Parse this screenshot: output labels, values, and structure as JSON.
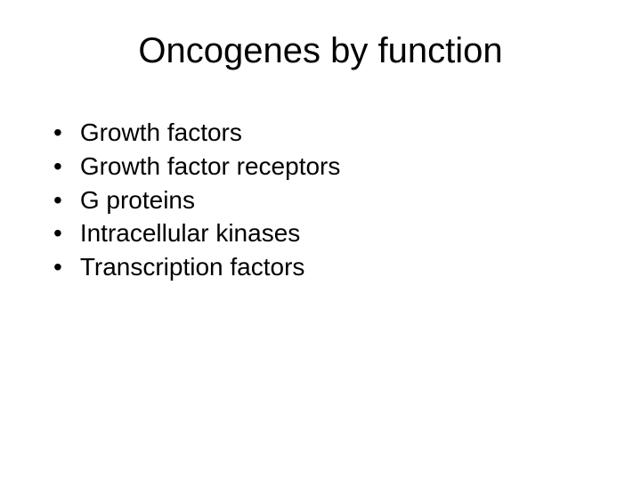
{
  "slide": {
    "title": "Oncogenes by function",
    "bullets": [
      "Growth factors",
      "Growth factor receptors",
      "G proteins",
      "Intracellular kinases",
      "Transcription factors"
    ],
    "background_color": "#ffffff",
    "text_color": "#000000",
    "title_fontsize": 40,
    "bullet_fontsize": 28
  }
}
